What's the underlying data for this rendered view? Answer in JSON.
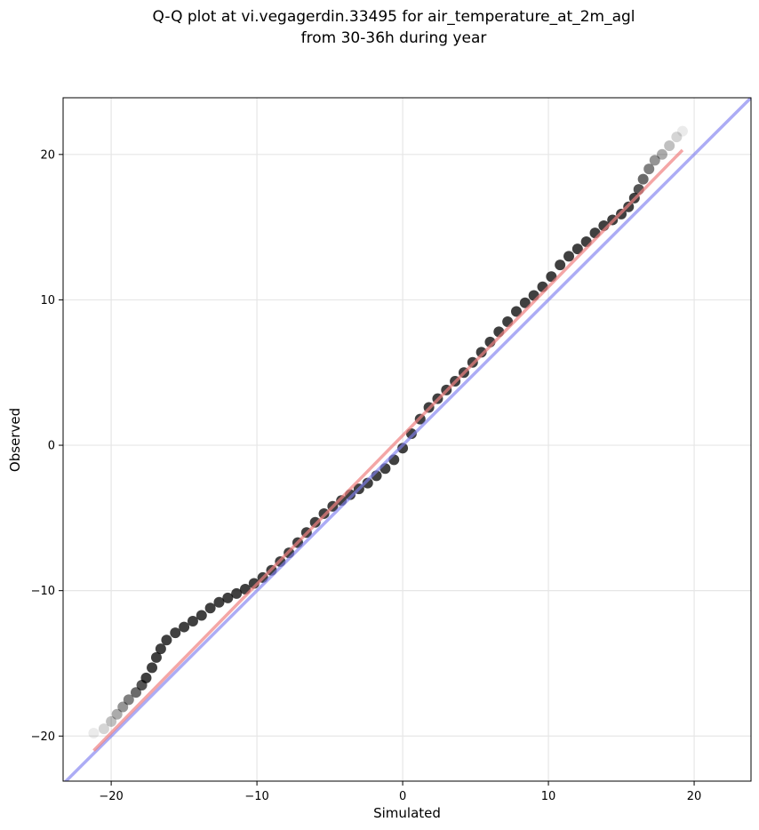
{
  "chart_data": {
    "type": "scatter",
    "title_lines": [
      "Q-Q plot at vi.vegagerdin.33495 for air_temperature_at_2m_agl",
      "from 30-36h during year"
    ],
    "xlabel": "Simulated",
    "ylabel": "Observed",
    "xlim": [
      -23.3,
      23.9
    ],
    "ylim": [
      -23.1,
      23.9
    ],
    "xticks": [
      -20,
      -10,
      0,
      10,
      20
    ],
    "yticks": [
      -20,
      -10,
      0,
      10,
      20
    ],
    "xtick_labels": [
      "−20",
      "−10",
      "0",
      "10",
      "20"
    ],
    "ytick_labels": [
      "−20",
      "−10",
      "0",
      "10",
      "20"
    ],
    "grid": true,
    "quantile_points": [
      {
        "x": -21.2,
        "y": -19.8
      },
      {
        "x": -20.5,
        "y": -19.5
      },
      {
        "x": -20.0,
        "y": -19.0
      },
      {
        "x": -19.6,
        "y": -18.5
      },
      {
        "x": -19.2,
        "y": -18.0
      },
      {
        "x": -18.8,
        "y": -17.5
      },
      {
        "x": -18.3,
        "y": -17.0
      },
      {
        "x": -17.9,
        "y": -16.5
      },
      {
        "x": -17.6,
        "y": -16.0
      },
      {
        "x": -17.2,
        "y": -15.3
      },
      {
        "x": -16.9,
        "y": -14.6
      },
      {
        "x": -16.6,
        "y": -14.0
      },
      {
        "x": -16.2,
        "y": -13.4
      },
      {
        "x": -15.6,
        "y": -12.9
      },
      {
        "x": -15.0,
        "y": -12.5
      },
      {
        "x": -14.4,
        "y": -12.1
      },
      {
        "x": -13.8,
        "y": -11.7
      },
      {
        "x": -13.2,
        "y": -11.2
      },
      {
        "x": -12.6,
        "y": -10.8
      },
      {
        "x": -12.0,
        "y": -10.5
      },
      {
        "x": -11.4,
        "y": -10.2
      },
      {
        "x": -10.8,
        "y": -9.9
      },
      {
        "x": -10.2,
        "y": -9.5
      },
      {
        "x": -9.6,
        "y": -9.1
      },
      {
        "x": -9.0,
        "y": -8.6
      },
      {
        "x": -8.4,
        "y": -8.0
      },
      {
        "x": -7.8,
        "y": -7.4
      },
      {
        "x": -7.2,
        "y": -6.7
      },
      {
        "x": -6.6,
        "y": -6.0
      },
      {
        "x": -6.0,
        "y": -5.3
      },
      {
        "x": -5.4,
        "y": -4.7
      },
      {
        "x": -4.8,
        "y": -4.2
      },
      {
        "x": -4.2,
        "y": -3.8
      },
      {
        "x": -3.6,
        "y": -3.4
      },
      {
        "x": -3.0,
        "y": -3.0
      },
      {
        "x": -2.4,
        "y": -2.6
      },
      {
        "x": -1.8,
        "y": -2.1
      },
      {
        "x": -1.2,
        "y": -1.6
      },
      {
        "x": -0.6,
        "y": -1.0
      },
      {
        "x": 0.0,
        "y": -0.2
      },
      {
        "x": 0.6,
        "y": 0.8
      },
      {
        "x": 1.2,
        "y": 1.8
      },
      {
        "x": 1.8,
        "y": 2.6
      },
      {
        "x": 2.4,
        "y": 3.2
      },
      {
        "x": 3.0,
        "y": 3.8
      },
      {
        "x": 3.6,
        "y": 4.4
      },
      {
        "x": 4.2,
        "y": 5.0
      },
      {
        "x": 4.8,
        "y": 5.7
      },
      {
        "x": 5.4,
        "y": 6.4
      },
      {
        "x": 6.0,
        "y": 7.1
      },
      {
        "x": 6.6,
        "y": 7.8
      },
      {
        "x": 7.2,
        "y": 8.5
      },
      {
        "x": 7.8,
        "y": 9.2
      },
      {
        "x": 8.4,
        "y": 9.8
      },
      {
        "x": 9.0,
        "y": 10.3
      },
      {
        "x": 9.6,
        "y": 10.9
      },
      {
        "x": 10.2,
        "y": 11.6
      },
      {
        "x": 10.8,
        "y": 12.4
      },
      {
        "x": 11.4,
        "y": 13.0
      },
      {
        "x": 12.0,
        "y": 13.5
      },
      {
        "x": 12.6,
        "y": 14.0
      },
      {
        "x": 13.2,
        "y": 14.6
      },
      {
        "x": 13.8,
        "y": 15.1
      },
      {
        "x": 14.4,
        "y": 15.5
      },
      {
        "x": 15.0,
        "y": 15.9
      },
      {
        "x": 15.5,
        "y": 16.4
      },
      {
        "x": 15.9,
        "y": 17.0
      },
      {
        "x": 16.2,
        "y": 17.6
      },
      {
        "x": 16.5,
        "y": 18.3
      },
      {
        "x": 16.9,
        "y": 19.0
      },
      {
        "x": 17.3,
        "y": 19.6
      },
      {
        "x": 17.8,
        "y": 20.0
      },
      {
        "x": 18.3,
        "y": 20.6
      },
      {
        "x": 18.8,
        "y": 21.2
      },
      {
        "x": 19.2,
        "y": 21.6
      }
    ],
    "fit_line": {
      "x": [
        -21.2,
        19.2
      ],
      "y": [
        -21.0,
        20.3
      ],
      "color": "#f08080"
    },
    "identity_line": {
      "x": [
        -23.3,
        23.9
      ],
      "y": [
        -23.3,
        23.9
      ],
      "color": "#7f7ff0"
    }
  }
}
